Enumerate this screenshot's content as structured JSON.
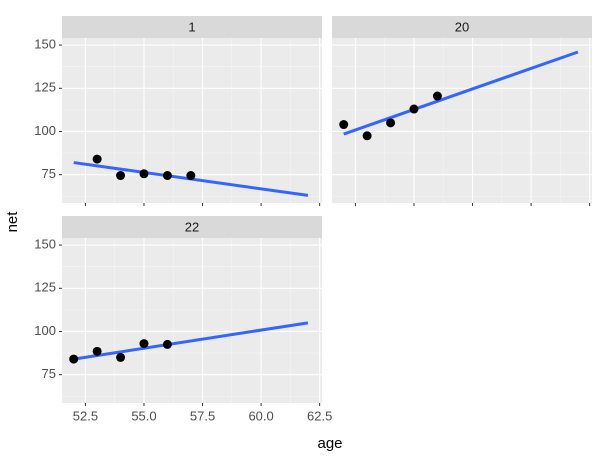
{
  "chart_data": {
    "type": "scatter",
    "xlabel": "age",
    "ylabel": "net",
    "xlim": [
      51.5,
      62.6
    ],
    "ylim": [
      58.6,
      154.1
    ],
    "xticks": [
      52.5,
      {
        "value": 55,
        "label": "55.0"
      },
      57.5,
      {
        "value": 60,
        "label": "60.0"
      },
      62.5
    ],
    "yticks": [
      75,
      100,
      125,
      150
    ],
    "grid": true,
    "point_color": "#000000",
    "fit_color": "#3366ff",
    "facets": [
      {
        "title": "1",
        "x": [
          53,
          54,
          55,
          56,
          57
        ],
        "y": [
          84,
          74.5,
          75.5,
          74.5,
          74.5
        ],
        "fit": {
          "x": [
            52,
            62
          ],
          "y": [
            82,
            63
          ]
        }
      },
      {
        "title": "20",
        "x": [
          52,
          53,
          54,
          55,
          56
        ],
        "y": [
          104,
          97.5,
          105,
          113,
          120.5
        ],
        "fit": {
          "x": [
            52,
            62
          ],
          "y": [
            98.5,
            146
          ]
        }
      },
      {
        "title": "22",
        "x": [
          52,
          53,
          54,
          55,
          56
        ],
        "y": [
          84,
          88.5,
          85,
          93,
          92.5
        ],
        "fit": {
          "x": [
            52,
            62
          ],
          "y": [
            84,
            105
          ]
        }
      }
    ]
  }
}
